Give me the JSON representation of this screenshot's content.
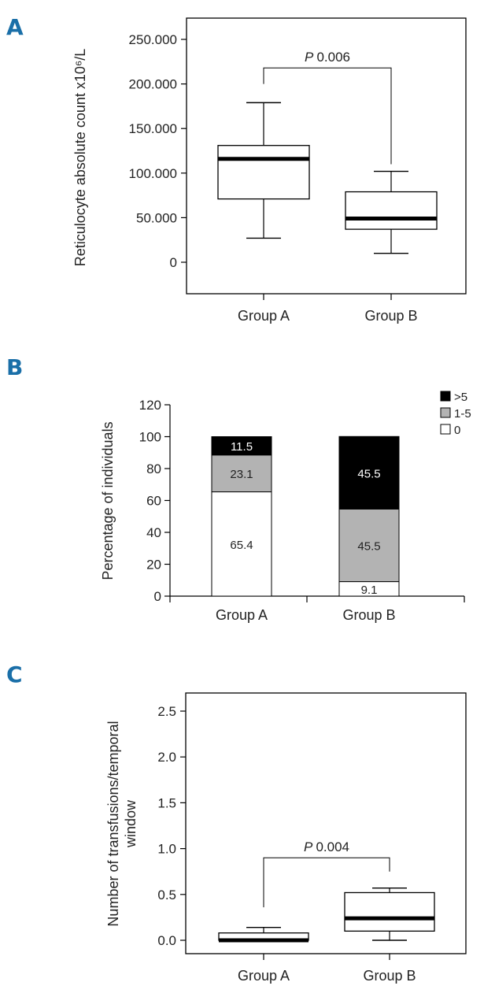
{
  "chart_data": [
    {
      "panel": "A",
      "type": "box",
      "ylabel": "Reticulocyte absolute count x10⁶/L",
      "ylim": [
        -40000,
        260000
      ],
      "yticks": [
        0,
        50000,
        100000,
        150000,
        200000,
        250000
      ],
      "ytick_labels": [
        "0",
        "50.000",
        "100.000",
        "150.000",
        "200.000",
        "250.000"
      ],
      "categories": [
        "Group A",
        "Group B"
      ],
      "boxes": [
        {
          "name": "Group A",
          "whisker_low": 27000,
          "q1": 71000,
          "median": 116000,
          "q3": 131000,
          "whisker_high": 179000
        },
        {
          "name": "Group B",
          "whisker_low": 10000,
          "q1": 37000,
          "median": 49000,
          "q3": 79000,
          "whisker_high": 102000
        }
      ],
      "annotation": {
        "p_label": "P",
        "p_value": "0.006",
        "bracket_y": 218000,
        "left_end": 200000,
        "right_end": 110000
      }
    },
    {
      "panel": "B",
      "type": "stacked_bar",
      "ylabel": "Percentage of individuals",
      "ylim": [
        0,
        120
      ],
      "yticks": [
        0,
        20,
        40,
        60,
        80,
        100,
        120
      ],
      "categories": [
        "Group A",
        "Group B"
      ],
      "series": [
        {
          "name": "0",
          "color": "#ffffff",
          "values": [
            65.4,
            9.1
          ],
          "labels": [
            "65.4",
            "9.1"
          ]
        },
        {
          "name": "1-5",
          "color": "#b3b3b3",
          "values": [
            23.1,
            45.5
          ],
          "labels": [
            "23.1",
            "45.5"
          ]
        },
        {
          "name": ">5",
          "color": "#000000",
          "values": [
            11.5,
            45.5
          ],
          "labels": [
            "11.5",
            "45.5"
          ]
        }
      ]
    },
    {
      "panel": "C",
      "type": "box",
      "ylabel_lines": [
        "Number of transfusions/temporal",
        "window"
      ],
      "ylim": [
        -0.1,
        2.65
      ],
      "yticks": [
        0,
        0.5,
        1.0,
        1.5,
        2.0,
        2.5
      ],
      "ytick_labels": [
        "0.0",
        "0.5",
        "1.0",
        "1.5",
        "2.0",
        "2.5"
      ],
      "categories": [
        "Group A",
        "Group B"
      ],
      "boxes": [
        {
          "name": "Group A",
          "whisker_low": 0.0,
          "q1": 0.0,
          "median": 0.0,
          "q3": 0.08,
          "whisker_high": 0.14
        },
        {
          "name": "Group B",
          "whisker_low": 0.0,
          "q1": 0.1,
          "median": 0.24,
          "q3": 0.52,
          "whisker_high": 0.57
        }
      ],
      "annotation": {
        "p_label": "P",
        "p_value": "0.004",
        "bracket_y": 0.9,
        "left_end": 0.36,
        "right_end": 0.75
      }
    }
  ]
}
